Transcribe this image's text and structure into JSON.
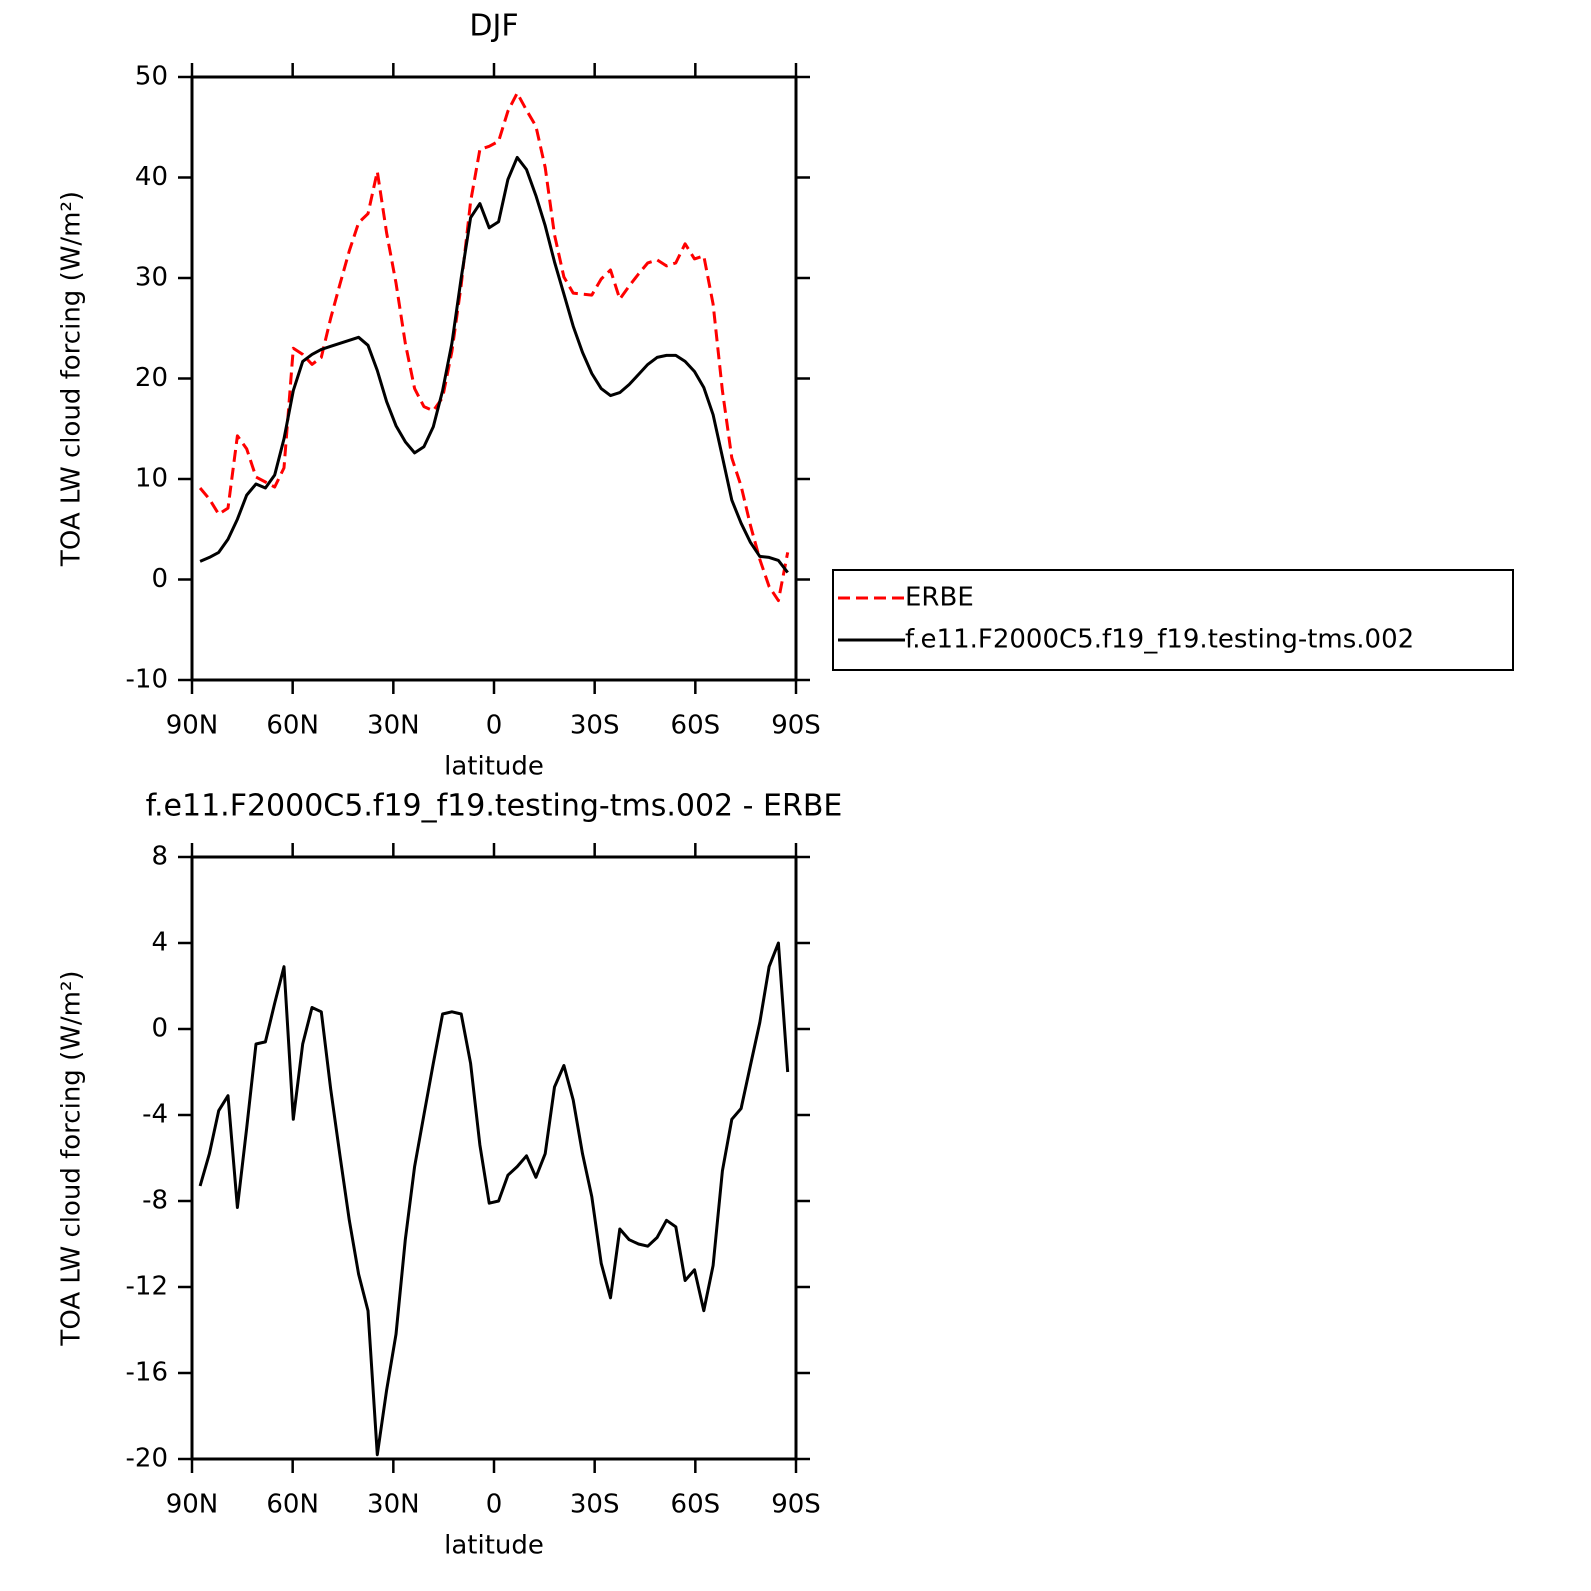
{
  "chart_data": [
    {
      "type": "line",
      "title": "DJF",
      "x_label": "latitude",
      "y_label": "TOA LW cloud forcing (W/m²)",
      "x": [
        87.6,
        84.82,
        82.04,
        79.26,
        76.48,
        73.7,
        70.92,
        68.14,
        65.36,
        62.58,
        59.8,
        57.02,
        54.24,
        51.46,
        48.68,
        45.9,
        43.12,
        40.34,
        37.56,
        34.78,
        32,
        29.22,
        26.44,
        23.66,
        20.88,
        18.1,
        15.32,
        12.54,
        9.76,
        6.98,
        4.2,
        1.42,
        -1.36,
        -4.14,
        -6.92,
        -9.7,
        -12.48,
        -15.26,
        -18.04,
        -20.82,
        -23.6,
        -26.38,
        -29.16,
        -31.94,
        -34.72,
        -37.5,
        -40.28,
        -43.06,
        -45.84,
        -48.62,
        -51.4,
        -54.18,
        -56.96,
        -59.74,
        -62.52,
        -65.3,
        -68.08,
        -70.86,
        -73.64,
        -76.42,
        -79.2,
        -81.98,
        -84.76,
        -87.54
      ],
      "series": [
        {
          "name": "ERBE",
          "color": "#ff0000",
          "dash": true,
          "values": [
            9.1,
            8.0,
            6.5,
            7.1,
            14.3,
            13.0,
            10.2,
            9.7,
            9.2,
            11.1,
            23.0,
            22.4,
            21.4,
            22.1,
            26.0,
            29.4,
            32.7,
            35.5,
            36.4,
            40.6,
            34.5,
            29.5,
            23.5,
            19.0,
            17.2,
            16.8,
            18.1,
            22.7,
            29.3,
            37.6,
            42.8,
            43.1,
            43.6,
            46.6,
            48.4,
            46.7,
            45.1,
            41.0,
            34.3,
            30.1,
            28.5,
            28.4,
            28.3,
            29.9,
            30.8,
            27.9,
            29.2,
            30.4,
            31.5,
            31.8,
            31.2,
            31.5,
            33.4,
            31.9,
            32.2,
            27.4,
            18.8,
            12.1,
            9.3,
            5.4,
            2.0,
            -0.7,
            -2.1,
            2.7
          ]
        },
        {
          "name": "f.e11.F2000C5.f19_f19.testing-tms.002",
          "color": "#000000",
          "dash": false,
          "values": [
            1.8,
            2.2,
            2.7,
            4.0,
            6.0,
            8.4,
            9.5,
            9.1,
            10.4,
            14.0,
            18.8,
            21.7,
            22.4,
            22.9,
            23.2,
            23.5,
            23.8,
            24.1,
            23.3,
            20.8,
            17.7,
            15.3,
            13.7,
            12.6,
            13.2,
            15.2,
            18.8,
            23.5,
            30.0,
            36.0,
            37.4,
            35.0,
            35.6,
            39.8,
            42.0,
            40.8,
            38.2,
            35.2,
            31.6,
            28.4,
            25.2,
            22.6,
            20.5,
            19.0,
            18.3,
            18.6,
            19.4,
            20.4,
            21.4,
            22.1,
            22.3,
            22.3,
            21.7,
            20.7,
            19.1,
            16.4,
            12.2,
            7.9,
            5.6,
            3.7,
            2.3,
            2.2,
            1.9,
            0.7
          ]
        }
      ],
      "xlim": [
        90,
        -90
      ],
      "xticks": [
        {
          "value": 90,
          "label": "90N"
        },
        {
          "value": 60,
          "label": "60N"
        },
        {
          "value": 30,
          "label": "30N"
        },
        0,
        {
          "value": -30,
          "label": "30S"
        },
        {
          "value": -60,
          "label": "60S"
        },
        {
          "value": -90,
          "label": "90S"
        }
      ],
      "ylim": [
        -10,
        50
      ],
      "yticks": [
        -10,
        0,
        10,
        20,
        30,
        40,
        50
      ],
      "legend": "right"
    },
    {
      "type": "line",
      "title": "f.e11.F2000C5.f19_f19.testing-tms.002 - ERBE",
      "x_label": "latitude",
      "y_label": "TOA LW cloud forcing (W/m²)",
      "x": [
        87.6,
        84.82,
        82.04,
        79.26,
        76.48,
        73.7,
        70.92,
        68.14,
        65.36,
        62.58,
        59.8,
        57.02,
        54.24,
        51.46,
        48.68,
        45.9,
        43.12,
        40.34,
        37.56,
        34.78,
        32,
        29.22,
        26.44,
        23.66,
        20.88,
        18.1,
        15.32,
        12.54,
        9.76,
        6.98,
        4.2,
        1.42,
        -1.36,
        -4.14,
        -6.92,
        -9.7,
        -12.48,
        -15.26,
        -18.04,
        -20.82,
        -23.6,
        -26.38,
        -29.16,
        -31.94,
        -34.72,
        -37.5,
        -40.28,
        -43.06,
        -45.84,
        -48.62,
        -51.4,
        -54.18,
        -56.96,
        -59.74,
        -62.52,
        -65.3,
        -68.08,
        -70.86,
        -73.64,
        -76.42,
        -79.2,
        -81.98,
        -84.76,
        -87.54
      ],
      "series": [
        {
          "color": "#000000",
          "dash": false,
          "values": [
            -7.3,
            -5.8,
            -3.8,
            -3.1,
            -8.3,
            -4.6,
            -0.7,
            -0.6,
            1.2,
            2.9,
            -4.2,
            -0.7,
            1.0,
            0.8,
            -2.8,
            -5.9,
            -8.9,
            -11.4,
            -13.1,
            -19.8,
            -16.8,
            -14.2,
            -9.8,
            -6.4,
            -4.0,
            -1.6,
            0.7,
            0.8,
            0.7,
            -1.6,
            -5.4,
            -8.1,
            -8.0,
            -6.8,
            -6.4,
            -5.9,
            -6.9,
            -5.8,
            -2.7,
            -1.7,
            -3.3,
            -5.8,
            -7.8,
            -10.9,
            -12.5,
            -9.3,
            -9.8,
            -10.0,
            -10.1,
            -9.7,
            -8.9,
            -9.2,
            -11.7,
            -11.2,
            -13.1,
            -11.0,
            -6.6,
            -4.2,
            -3.7,
            -1.7,
            0.3,
            2.9,
            4.0,
            -2.0
          ]
        }
      ],
      "xlim": [
        90,
        -90
      ],
      "xticks": [
        {
          "value": 90,
          "label": "90N"
        },
        {
          "value": 60,
          "label": "60N"
        },
        {
          "value": 30,
          "label": "30N"
        },
        0,
        {
          "value": -30,
          "label": "30S"
        },
        {
          "value": -60,
          "label": "60S"
        },
        {
          "value": -90,
          "label": "90S"
        }
      ],
      "ylim": [
        -20,
        8
      ],
      "yticks": [
        -20,
        -16,
        -12,
        -8,
        -4,
        0,
        4,
        8
      ]
    }
  ]
}
